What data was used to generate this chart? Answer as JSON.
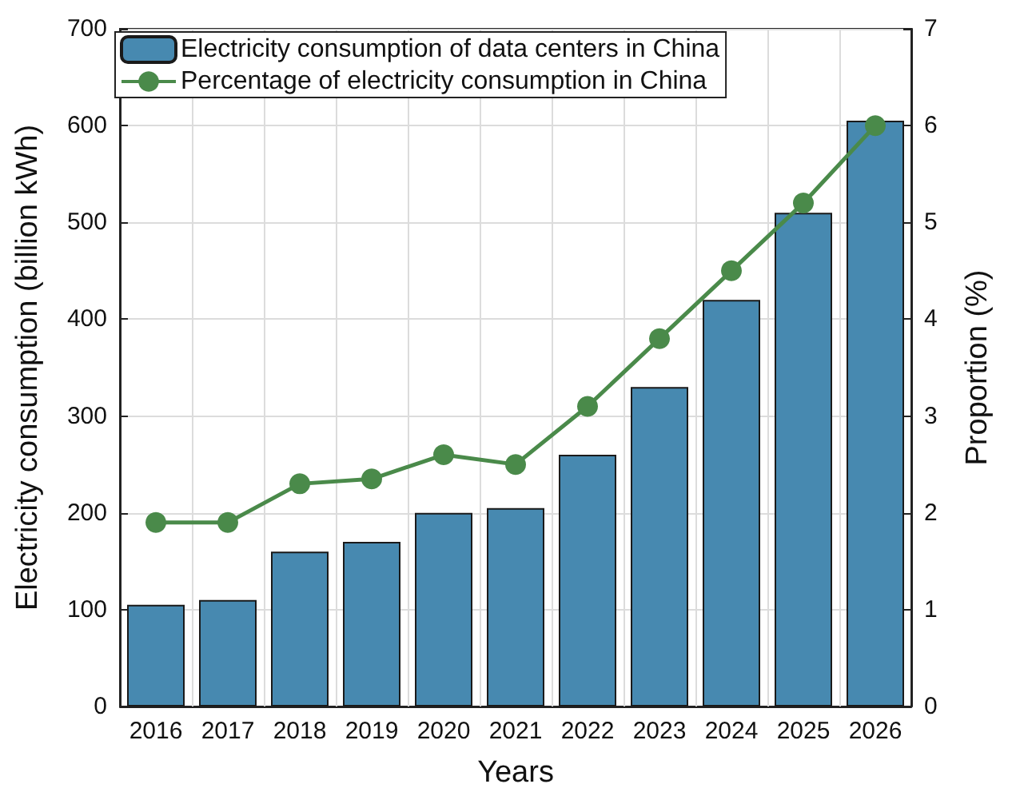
{
  "chart_data": {
    "type": "bar",
    "xlabel": "Years",
    "ylabel": "Electricity consumption (billion kWh)",
    "y2label": "Proportion (%)",
    "categories": [
      "2016",
      "2017",
      "2018",
      "2019",
      "2020",
      "2021",
      "2022",
      "2023",
      "2024",
      "2025",
      "2026"
    ],
    "series": [
      {
        "name": "Electricity consumption of data centers in China",
        "color": "#4789b0",
        "values": [
          105,
          110,
          160,
          170,
          200,
          205,
          260,
          330,
          420,
          510,
          605
        ]
      },
      {
        "name": "Percentage of electricity consumption in China",
        "type": "line",
        "axis": "y2",
        "color": "#4a8a4a",
        "values": [
          1.9,
          1.9,
          2.3,
          2.35,
          2.6,
          2.5,
          3.1,
          3.8,
          4.5,
          5.2,
          6.0
        ]
      }
    ],
    "ylim": [
      0,
      700
    ],
    "yticks": [
      0,
      100,
      200,
      300,
      400,
      500,
      600,
      700
    ],
    "y2lim": [
      0,
      7
    ],
    "y2ticks": [
      0,
      1,
      2,
      3,
      4,
      5,
      6,
      7
    ],
    "grid": true,
    "legend": "top left",
    "marker": "circle"
  }
}
